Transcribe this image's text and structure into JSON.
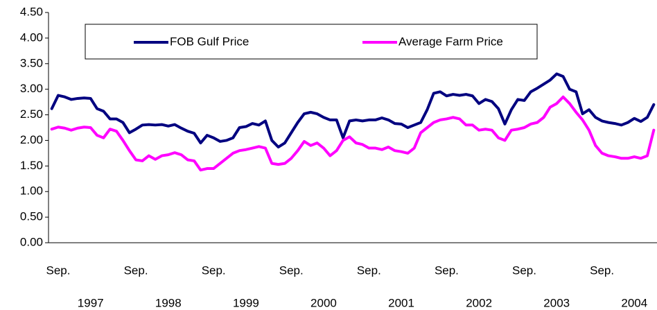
{
  "chart_data": {
    "type": "line",
    "categories": [
      null,
      "Sep.",
      null,
      null,
      null,
      null,
      null,
      null,
      null,
      null,
      null,
      null,
      null,
      "Sep.",
      null,
      null,
      null,
      null,
      null,
      null,
      null,
      null,
      null,
      null,
      null,
      "Sep.",
      null,
      null,
      null,
      null,
      null,
      null,
      null,
      null,
      null,
      null,
      null,
      "Sep.",
      null,
      null,
      null,
      null,
      null,
      null,
      null,
      null,
      null,
      null,
      null,
      "Sep.",
      null,
      null,
      null,
      null,
      null,
      null,
      null,
      null,
      null,
      null,
      null,
      "Sep.",
      null,
      null,
      null,
      null,
      null,
      null,
      null,
      null,
      null,
      null,
      null,
      "Sep.",
      null,
      null,
      null,
      null,
      null,
      null,
      null,
      null,
      null,
      null,
      null,
      "Sep.",
      null,
      null,
      null,
      null,
      null,
      null,
      null,
      null
    ],
    "year_labels": [
      "1997",
      "1998",
      "1999",
      "2000",
      "2001",
      "2002",
      "2003",
      "2004"
    ],
    "series": [
      {
        "name": "FOB Gulf Price",
        "color": "#000080",
        "values": [
          2.62,
          2.88,
          2.85,
          2.8,
          2.82,
          2.83,
          2.82,
          2.62,
          2.57,
          2.42,
          2.42,
          2.35,
          2.15,
          2.22,
          2.3,
          2.31,
          2.3,
          2.31,
          2.28,
          2.31,
          2.24,
          2.18,
          2.14,
          1.95,
          2.1,
          2.05,
          1.98,
          2.0,
          2.05,
          2.25,
          2.27,
          2.33,
          2.3,
          2.38,
          2.0,
          1.87,
          1.95,
          2.15,
          2.35,
          2.52,
          2.55,
          2.52,
          2.45,
          2.4,
          2.4,
          2.05,
          2.38,
          2.4,
          2.38,
          2.4,
          2.4,
          2.44,
          2.4,
          2.33,
          2.32,
          2.25,
          2.3,
          2.35,
          2.6,
          2.92,
          2.95,
          2.87,
          2.9,
          2.88,
          2.9,
          2.87,
          2.72,
          2.8,
          2.76,
          2.62,
          2.32,
          2.6,
          2.8,
          2.78,
          2.95,
          3.02,
          3.1,
          3.18,
          3.3,
          3.25,
          3.0,
          2.95,
          2.52,
          2.6,
          2.45,
          2.38,
          2.35,
          2.33,
          2.3,
          2.35,
          2.43,
          2.37,
          2.45,
          2.7
        ]
      },
      {
        "name": "Average Farm Price",
        "color": "#ff00ff",
        "values": [
          2.22,
          2.26,
          2.24,
          2.2,
          2.24,
          2.26,
          2.25,
          2.1,
          2.05,
          2.22,
          2.18,
          2.0,
          1.8,
          1.62,
          1.6,
          1.7,
          1.63,
          1.7,
          1.72,
          1.76,
          1.72,
          1.62,
          1.6,
          1.42,
          1.45,
          1.45,
          1.55,
          1.65,
          1.75,
          1.8,
          1.82,
          1.85,
          1.88,
          1.85,
          1.55,
          1.53,
          1.55,
          1.65,
          1.8,
          1.98,
          1.9,
          1.95,
          1.85,
          1.7,
          1.8,
          2.0,
          2.07,
          1.95,
          1.92,
          1.85,
          1.85,
          1.82,
          1.87,
          1.8,
          1.78,
          1.75,
          1.85,
          2.15,
          2.25,
          2.35,
          2.4,
          2.42,
          2.45,
          2.42,
          2.3,
          2.3,
          2.2,
          2.22,
          2.2,
          2.05,
          2.0,
          2.2,
          2.22,
          2.25,
          2.32,
          2.35,
          2.45,
          2.65,
          2.72,
          2.85,
          2.72,
          2.55,
          2.4,
          2.2,
          1.9,
          1.75,
          1.7,
          1.68,
          1.65,
          1.65,
          1.68,
          1.65,
          1.7,
          2.2
        ]
      }
    ],
    "ylim": [
      0,
      4.5
    ],
    "yticks": [
      {
        "value": 0,
        "label": "0.00"
      },
      {
        "value": 0.5,
        "label": "0.50"
      },
      {
        "value": 1,
        "label": "1.00"
      },
      {
        "value": 1.5,
        "label": "1.50"
      },
      {
        "value": 2,
        "label": "2.00"
      },
      {
        "value": 2.5,
        "label": "2.50"
      },
      {
        "value": 3,
        "label": "3.00"
      },
      {
        "value": 3.5,
        "label": "3.50"
      },
      {
        "value": 4,
        "label": "4.00"
      },
      {
        "value": 4.5,
        "label": "4.50"
      }
    ],
    "grid": false
  }
}
